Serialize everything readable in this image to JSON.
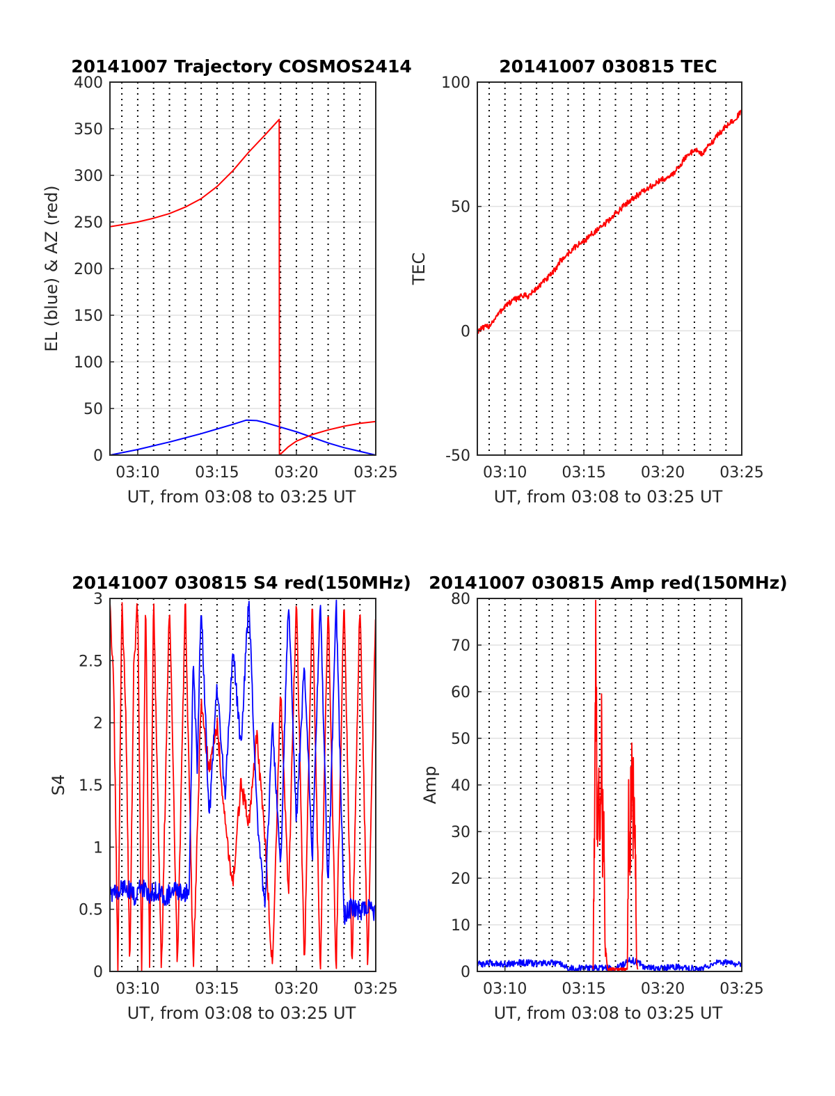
{
  "figure": {
    "background": "#ffffff",
    "series_colors": {
      "red": "#ff0000",
      "blue": "#0000ff"
    }
  },
  "chart_data": [
    {
      "id": "trajectory",
      "type": "line",
      "title": "20141007 Trajectory COSMOS2414",
      "xlabel": "UT, from 03:08 to 03:25 UT",
      "ylabel": "EL (blue) & AZ (red)",
      "xlim": [
        "03:08:15",
        "03:25:00"
      ],
      "ylim": [
        0,
        400
      ],
      "x_ticks": [
        "03:10",
        "03:15",
        "03:20",
        "03:25"
      ],
      "y_ticks": [
        "0",
        "50",
        "100",
        "150",
        "200",
        "250",
        "300",
        "350",
        "400"
      ],
      "grid": true,
      "series": [
        {
          "color": "#0000ff",
          "x": [
            "03:08:15",
            "03:10:00",
            "03:12:00",
            "03:14:00",
            "03:15:00",
            "03:16:00",
            "03:16:50",
            "03:17:30",
            "03:18:00",
            "03:19:00",
            "03:20:00",
            "03:21:00",
            "03:22:00",
            "03:23:00",
            "03:24:00",
            "03:25:00"
          ],
          "y": [
            0,
            6,
            14,
            23,
            28,
            33,
            37.5,
            37,
            35,
            30,
            25,
            19,
            13,
            8,
            4,
            0
          ]
        },
        {
          "color": "#ff0000",
          "x": [
            "03:08:15",
            "03:09:00",
            "03:10:00",
            "03:11:00",
            "03:12:00",
            "03:13:00",
            "03:14:00",
            "03:15:00",
            "03:16:00",
            "03:17:00",
            "03:18:00",
            "03:18:55",
            "03:18:56",
            "03:19:30",
            "03:20:00",
            "03:21:00",
            "03:22:00",
            "03:23:00",
            "03:24:00",
            "03:25:00"
          ],
          "y": [
            245,
            247,
            250,
            254,
            259,
            266,
            275,
            288,
            305,
            325,
            343,
            360,
            0,
            9,
            15,
            22,
            27,
            31,
            34,
            36
          ]
        }
      ]
    },
    {
      "id": "tec",
      "type": "line",
      "title": "20141007 030815 TEC",
      "xlabel": "UT, from 03:08 to 03:25 UT",
      "ylabel": "TEC",
      "xlim": [
        "03:08:15",
        "03:25:00"
      ],
      "ylim": [
        -50,
        100
      ],
      "x_ticks": [
        "03:10",
        "03:15",
        "03:20",
        "03:25"
      ],
      "y_ticks": [
        "-50",
        "0",
        "50",
        "100"
      ],
      "grid": true,
      "series": [
        {
          "color": "#ff0000",
          "x": [
            "03:08:15",
            "03:09:00",
            "03:09:30",
            "03:10:00",
            "03:10:30",
            "03:11:00",
            "03:11:30",
            "03:12:00",
            "03:12:30",
            "03:13:00",
            "03:13:30",
            "03:14:00",
            "03:14:30",
            "03:15:00",
            "03:15:30",
            "03:16:00",
            "03:16:30",
            "03:17:00",
            "03:17:30",
            "03:18:00",
            "03:18:30",
            "03:19:00",
            "03:19:30",
            "03:20:00",
            "03:20:30",
            "03:21:00",
            "03:21:30",
            "03:22:00",
            "03:22:30",
            "03:23:00",
            "03:23:30",
            "03:24:00",
            "03:24:30",
            "03:25:00"
          ],
          "y": [
            0,
            2,
            6,
            10,
            12,
            14,
            14,
            17,
            20,
            23,
            28,
            31,
            34,
            36,
            39,
            41,
            44,
            47,
            50,
            53,
            55,
            57,
            59,
            61,
            62,
            66,
            70,
            73,
            71,
            75,
            79,
            82,
            85,
            88
          ]
        }
      ]
    },
    {
      "id": "s4",
      "type": "line",
      "title": "20141007 030815 S4 red(150MHz)",
      "xlabel": "UT, from 03:08 to 03:25 UT",
      "ylabel": "S4",
      "xlim": [
        "03:08:15",
        "03:25:00"
      ],
      "ylim": [
        0,
        3
      ],
      "x_ticks": [
        "03:10",
        "03:15",
        "03:20",
        "03:25"
      ],
      "y_ticks": [
        "0",
        "0.5",
        "1",
        "1.5",
        "2",
        "2.5",
        "3"
      ],
      "grid": true,
      "series": [
        {
          "color": "#ff0000",
          "x": [
            "03:08:15",
            "03:08:30",
            "03:08:45",
            "03:09:00",
            "03:09:15",
            "03:09:30",
            "03:09:45",
            "03:10:00",
            "03:10:15",
            "03:10:30",
            "03:10:45",
            "03:11:00",
            "03:11:30",
            "03:12:00",
            "03:12:30",
            "03:13:00",
            "03:13:30",
            "03:14:00",
            "03:14:30",
            "03:15:00",
            "03:15:30",
            "03:16:00",
            "03:16:30",
            "03:17:00",
            "03:17:30",
            "03:18:00",
            "03:18:30",
            "03:19:00",
            "03:19:30",
            "03:20:00",
            "03:20:30",
            "03:21:00",
            "03:21:30",
            "03:22:00",
            "03:22:30",
            "03:23:00",
            "03:23:30",
            "03:24:00",
            "03:24:30",
            "03:25:00"
          ],
          "y": [
            3,
            2.2,
            0,
            3,
            2.1,
            0,
            2.4,
            3,
            0,
            3,
            0,
            3,
            0,
            3,
            0,
            3,
            0,
            2.2,
            1.6,
            2.0,
            1.2,
            0.7,
            1.5,
            1.2,
            1.9,
            1.1,
            0,
            2.3,
            0.6,
            3,
            0,
            3,
            0,
            3,
            0,
            3,
            0,
            3,
            0,
            3
          ]
        },
        {
          "color": "#0000ff",
          "x": [
            "03:08:15",
            "03:08:45",
            "03:09:15",
            "03:09:45",
            "03:10:15",
            "03:10:45",
            "03:11:15",
            "03:11:45",
            "03:12:15",
            "03:12:45",
            "03:13:15",
            "03:13:30",
            "03:13:45",
            "03:14:00",
            "03:14:30",
            "03:15:00",
            "03:15:30",
            "03:16:00",
            "03:16:30",
            "03:17:00",
            "03:17:30",
            "03:18:00",
            "03:18:30",
            "03:19:00",
            "03:19:30",
            "03:20:00",
            "03:20:30",
            "03:21:00",
            "03:21:30",
            "03:22:00",
            "03:22:30",
            "03:23:00",
            "03:23:30",
            "03:24:00",
            "03:24:30",
            "03:25:00"
          ],
          "y": [
            0.65,
            0.62,
            0.7,
            0.6,
            0.68,
            0.62,
            0.66,
            0.6,
            0.65,
            0.62,
            0.66,
            2.5,
            1.6,
            3,
            1.2,
            2.3,
            1.4,
            2.6,
            1.8,
            3,
            1.3,
            0.5,
            2.0,
            0.8,
            3,
            1.2,
            2.5,
            0.9,
            3,
            0.6,
            3,
            0.45,
            0.52,
            0.48,
            0.5,
            0.47
          ]
        }
      ]
    },
    {
      "id": "amp",
      "type": "line",
      "title": "20141007 030815 Amp red(150MHz)",
      "xlabel": "UT, from 03:08 to 03:25 UT",
      "ylabel": "Amp",
      "xlim": [
        "03:08:15",
        "03:25:00"
      ],
      "ylim": [
        0,
        80
      ],
      "x_ticks": [
        "03:10",
        "03:15",
        "03:20",
        "03:25"
      ],
      "y_ticks": [
        "0",
        "10",
        "20",
        "30",
        "40",
        "50",
        "60",
        "70",
        "80"
      ],
      "grid": true,
      "series": [
        {
          "color": "#0000ff",
          "x": [
            "03:08:15",
            "03:09:00",
            "03:10:00",
            "03:11:00",
            "03:12:00",
            "03:13:00",
            "03:13:30",
            "03:14:00",
            "03:15:00",
            "03:16:00",
            "03:17:00",
            "03:18:00",
            "03:19:00",
            "03:20:00",
            "03:21:00",
            "03:22:00",
            "03:23:00",
            "03:23:30",
            "03:24:00",
            "03:25:00"
          ],
          "y": [
            1.5,
            1.8,
            1.6,
            1.9,
            1.7,
            1.8,
            1.5,
            0.6,
            0.7,
            0.8,
            0.6,
            2.5,
            0.8,
            0.7,
            1.0,
            0.6,
            1.0,
            2.0,
            1.8,
            1.6
          ]
        },
        {
          "color": "#ff0000",
          "x": [
            "03:15:35",
            "03:15:40",
            "03:15:45",
            "03:15:50",
            "03:15:55",
            "03:16:00",
            "03:16:05",
            "03:16:10",
            "03:16:15",
            "03:16:20",
            "03:16:25",
            "03:16:30",
            "03:17:45",
            "03:17:50",
            "03:17:55",
            "03:18:00",
            "03:18:05",
            "03:18:10",
            "03:18:15",
            "03:18:20",
            "03:18:25"
          ],
          "y": [
            0.5,
            32,
            62,
            38,
            42,
            25,
            55,
            30,
            35,
            5,
            3,
            0.5,
            0.5,
            31,
            20,
            41,
            36,
            35,
            33,
            2,
            0.5
          ]
        }
      ]
    }
  ]
}
